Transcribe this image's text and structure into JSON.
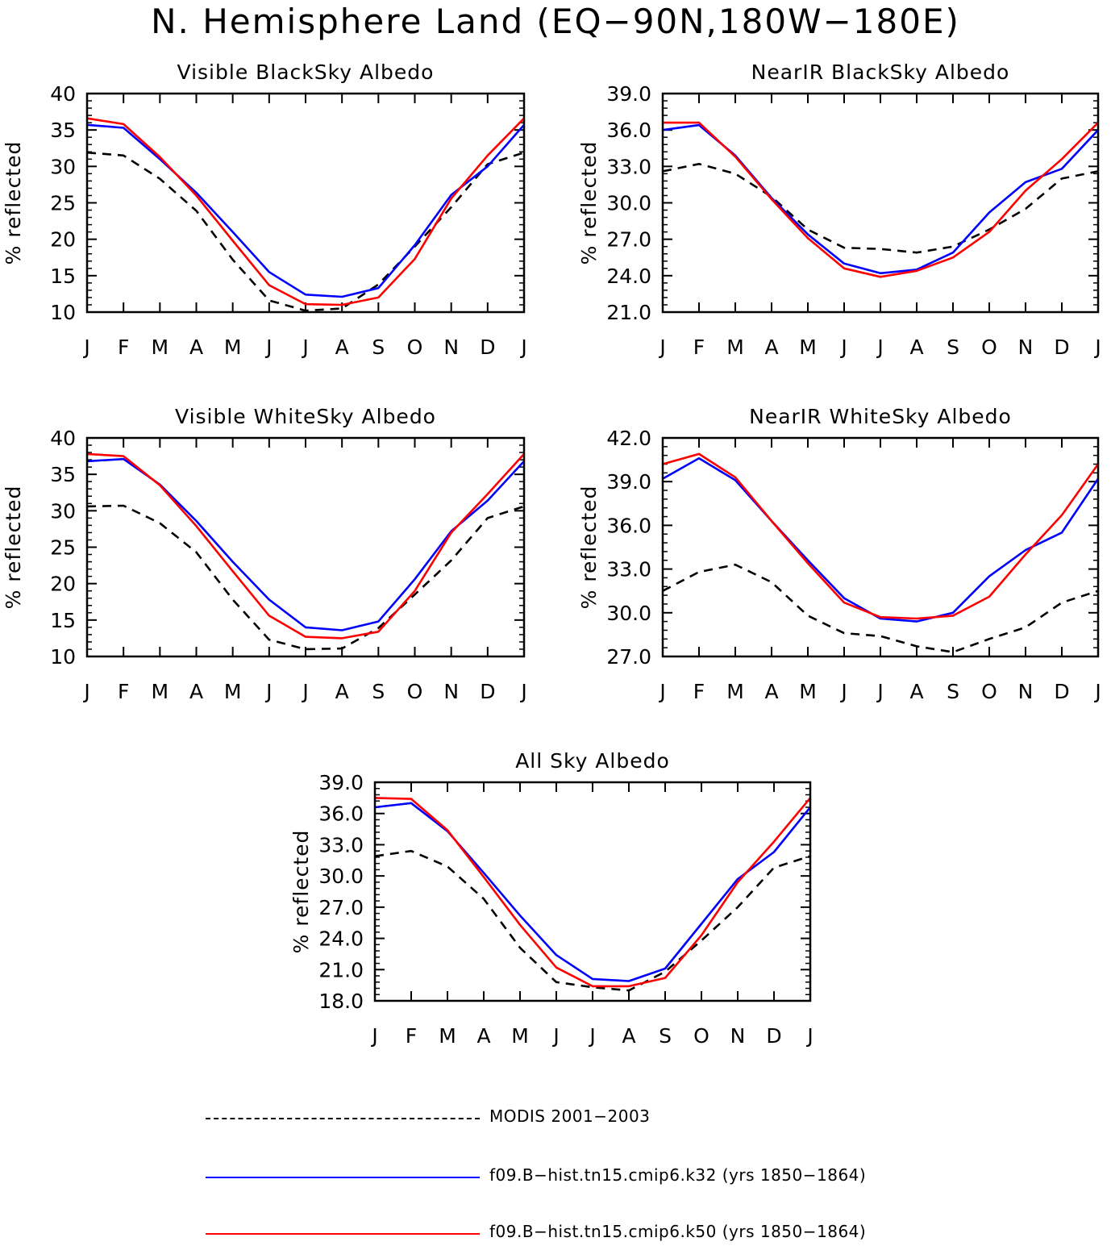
{
  "title": "N. Hemisphere Land (EQ−90N,180W−180E)",
  "colors": {
    "obs": "#000000",
    "k32": "#0000ff",
    "k50": "#ff0000"
  },
  "legend": [
    {
      "key": "obs",
      "label": "MODIS 2001−2003",
      "dash": true
    },
    {
      "key": "k32",
      "label": "f09.B−hist.tn15.cmip6.k32 (yrs 1850−1864)",
      "dash": false
    },
    {
      "key": "k50",
      "label": "f09.B−hist.tn15.cmip6.k50 (yrs 1850−1864)",
      "dash": false
    }
  ],
  "chart_data": [
    {
      "type": "line",
      "title": "Visible BlackSky Albedo",
      "ylabel": "% reflected",
      "categories": [
        "J",
        "F",
        "M",
        "A",
        "M",
        "J",
        "J",
        "A",
        "S",
        "O",
        "N",
        "D",
        "J"
      ],
      "ylim": [
        10,
        40
      ],
      "yticks": [
        "10",
        "15",
        "20",
        "25",
        "30",
        "35",
        "40"
      ],
      "series": [
        {
          "key": "obs",
          "values": [
            31.9,
            31.5,
            28.3,
            23.9,
            17.2,
            11.6,
            10.2,
            10.5,
            13.8,
            19.0,
            24.4,
            30.3,
            31.9
          ]
        },
        {
          "key": "k32",
          "values": [
            35.7,
            35.3,
            31.0,
            26.4,
            21.0,
            15.5,
            12.4,
            12.1,
            13.3,
            19.2,
            26.1,
            30.0,
            35.7
          ]
        },
        {
          "key": "k50",
          "values": [
            36.6,
            35.8,
            31.3,
            26.0,
            19.8,
            13.7,
            11.1,
            11.0,
            12.0,
            17.3,
            25.6,
            31.5,
            36.6
          ]
        }
      ]
    },
    {
      "type": "line",
      "title": "NearIR BlackSky Albedo",
      "ylabel": "% reflected",
      "categories": [
        "J",
        "F",
        "M",
        "A",
        "M",
        "J",
        "J",
        "A",
        "S",
        "O",
        "N",
        "D",
        "J"
      ],
      "ylim": [
        21,
        39
      ],
      "yticks": [
        "21.0",
        "24.0",
        "27.0",
        "30.0",
        "33.0",
        "36.0",
        "39.0"
      ],
      "series": [
        {
          "key": "obs",
          "values": [
            32.6,
            33.2,
            32.4,
            30.5,
            27.8,
            26.3,
            26.2,
            25.9,
            26.4,
            27.8,
            29.5,
            32.0,
            32.6
          ]
        },
        {
          "key": "k32",
          "values": [
            36.0,
            36.4,
            33.9,
            30.4,
            27.4,
            25.0,
            24.2,
            24.5,
            25.9,
            29.2,
            31.7,
            32.8,
            36.0
          ]
        },
        {
          "key": "k50",
          "values": [
            36.6,
            36.6,
            33.8,
            30.3,
            27.1,
            24.6,
            23.9,
            24.4,
            25.5,
            27.6,
            31.0,
            33.6,
            36.6
          ]
        }
      ]
    },
    {
      "type": "line",
      "title": "Visible WhiteSky Albedo",
      "ylabel": "% reflected",
      "categories": [
        "J",
        "F",
        "M",
        "A",
        "M",
        "J",
        "J",
        "A",
        "S",
        "O",
        "N",
        "D",
        "J"
      ],
      "ylim": [
        10,
        40
      ],
      "yticks": [
        "10",
        "15",
        "20",
        "25",
        "30",
        "35",
        "40"
      ],
      "series": [
        {
          "key": "obs",
          "values": [
            30.6,
            30.7,
            28.3,
            24.3,
            17.8,
            12.3,
            11.0,
            11.1,
            13.9,
            18.5,
            23.2,
            29.0,
            30.6
          ]
        },
        {
          "key": "k32",
          "values": [
            36.8,
            37.1,
            33.6,
            28.6,
            23.0,
            17.8,
            14.0,
            13.6,
            14.8,
            20.6,
            27.2,
            31.4,
            36.8
          ]
        },
        {
          "key": "k50",
          "values": [
            37.8,
            37.5,
            33.5,
            27.9,
            21.7,
            15.6,
            12.7,
            12.5,
            13.4,
            19.0,
            27.0,
            32.3,
            37.8
          ]
        }
      ]
    },
    {
      "type": "line",
      "title": "NearIR WhiteSky Albedo",
      "ylabel": "% reflected",
      "categories": [
        "J",
        "F",
        "M",
        "A",
        "M",
        "J",
        "J",
        "A",
        "S",
        "O",
        "N",
        "D",
        "J"
      ],
      "ylim": [
        27,
        42
      ],
      "yticks": [
        "27.0",
        "30.0",
        "33.0",
        "36.0",
        "39.0",
        "42.0"
      ],
      "series": [
        {
          "key": "obs",
          "values": [
            31.5,
            32.8,
            33.3,
            32.1,
            29.8,
            28.6,
            28.4,
            27.7,
            27.3,
            28.2,
            29.0,
            30.7,
            31.5
          ]
        },
        {
          "key": "k32",
          "values": [
            39.2,
            40.6,
            39.1,
            36.3,
            33.6,
            31.0,
            29.6,
            29.4,
            30.0,
            32.5,
            34.3,
            35.5,
            39.2
          ]
        },
        {
          "key": "k50",
          "values": [
            40.2,
            40.9,
            39.3,
            36.3,
            33.4,
            30.7,
            29.7,
            29.6,
            29.8,
            31.1,
            34.0,
            36.7,
            40.2
          ]
        }
      ]
    },
    {
      "type": "line",
      "title": "All Sky Albedo",
      "ylabel": "% reflected",
      "categories": [
        "J",
        "F",
        "M",
        "A",
        "M",
        "J",
        "J",
        "A",
        "S",
        "O",
        "N",
        "D",
        "J"
      ],
      "ylim": [
        18,
        39
      ],
      "yticks": [
        "18.0",
        "21.0",
        "24.0",
        "27.0",
        "30.0",
        "33.0",
        "36.0",
        "39.0"
      ],
      "series": [
        {
          "key": "obs",
          "values": [
            31.9,
            32.4,
            30.9,
            27.8,
            23.1,
            19.8,
            19.3,
            19.0,
            20.8,
            23.8,
            27.0,
            30.8,
            31.9
          ]
        },
        {
          "key": "k32",
          "values": [
            36.6,
            37.0,
            34.3,
            30.3,
            26.2,
            22.4,
            20.1,
            19.9,
            21.1,
            25.4,
            29.7,
            32.3,
            36.6
          ]
        },
        {
          "key": "k50",
          "values": [
            37.5,
            37.4,
            34.4,
            29.9,
            25.3,
            21.2,
            19.4,
            19.4,
            20.2,
            24.3,
            29.4,
            33.3,
            37.5
          ]
        }
      ]
    }
  ]
}
